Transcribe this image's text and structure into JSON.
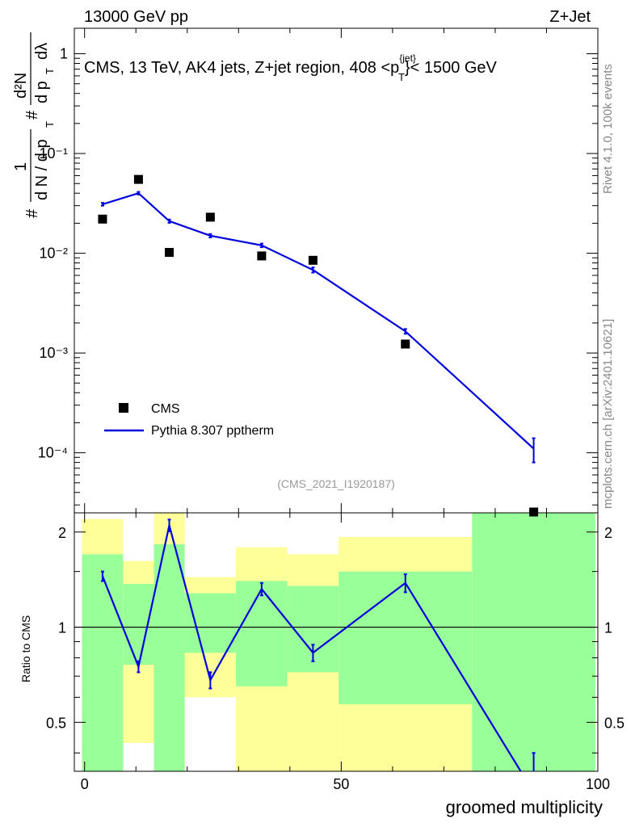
{
  "header": {
    "left": "13000 GeV pp",
    "right": "Z+Jet"
  },
  "side": {
    "rivet": "Rivet 4.1.0,  100k events",
    "source": "mcplots.cern.ch [arXiv:2401.10621]"
  },
  "chart_data": {
    "type": "line",
    "title": "CMS, 13 TeV, AK4 jets, Z+jet region, 408 <p_T^{jet}< 1500 GeV",
    "title_parts": {
      "pre": "CMS, 13 TeV, AK4 jets, Z+jet region, 408 <p",
      "sup": "{jet}",
      "sub": "T",
      "post": "}< 1500 GeV"
    },
    "ylabel_main_parts": {
      "hash1": "#",
      "one": "1",
      "dn": "d N / d p",
      "t1": "T",
      "hash2": "#",
      "d2n": "d²N",
      "dpt": "d p",
      "t2": "T",
      "dl": "dλ"
    },
    "xlabel": "groomed multiplicity",
    "ylabel_ratio": "Ratio to CMS",
    "watermark": "(CMS_2021_I1920187)",
    "xlim": [
      -2,
      100
    ],
    "ylim_main": [
      2.5e-05,
      1.8
    ],
    "ylim_ratio": [
      0.35,
      2.3
    ],
    "x_ticks": [
      0,
      50,
      100
    ],
    "y_ticks_main": [
      {
        "value": 1,
        "label": "1"
      },
      {
        "value": 0.1,
        "label": "10⁻¹"
      },
      {
        "value": 0.01,
        "label": "10⁻²"
      },
      {
        "value": 0.001,
        "label": "10⁻³"
      },
      {
        "value": 0.0001,
        "label": "10⁻⁴"
      }
    ],
    "y_ticks_ratio": [
      {
        "value": 2,
        "label": "2"
      },
      {
        "value": 1,
        "label": "1"
      },
      {
        "value": 0.5,
        "label": "0.5"
      }
    ],
    "legend": [
      {
        "name": "CMS",
        "marker": "square",
        "color": "#000000"
      },
      {
        "name": "Pythia 8.307 pptherm",
        "marker": "line",
        "color": "#0000dd"
      }
    ],
    "series": [
      {
        "name": "CMS",
        "x": [
          3.5,
          10.5,
          16.5,
          24.5,
          34.5,
          44.5,
          62.5,
          87.5
        ],
        "values": [
          0.022,
          0.055,
          0.0102,
          0.023,
          0.0094,
          0.0085,
          0.00123,
          2.3e-05
        ]
      },
      {
        "name": "Pythia 8.307 pptherm",
        "x": [
          3.5,
          10.5,
          16.5,
          24.5,
          34.5,
          44.5,
          62.5,
          87.5
        ],
        "values": [
          0.031,
          0.04,
          0.021,
          0.015,
          0.012,
          0.0068,
          0.00165,
          0.00011
        ],
        "err": [
          0.001,
          0.0012,
          0.0008,
          0.0006,
          0.0005,
          0.0004,
          9e-05,
          3e-05
        ]
      }
    ],
    "ratio": {
      "x": [
        3.5,
        10.5,
        16.5,
        24.5,
        34.5,
        44.5,
        62.5,
        87.5
      ],
      "values": [
        1.45,
        0.75,
        2.1,
        0.68,
        1.32,
        0.83,
        1.38,
        0.3
      ],
      "err": [
        0.05,
        0.03,
        0.09,
        0.04,
        0.06,
        0.05,
        0.09,
        0.1
      ]
    },
    "bands": [
      {
        "xmin": -0.5,
        "xmax": 7.5,
        "yellow": [
          0.35,
          2.2
        ],
        "green": [
          0.35,
          1.7
        ]
      },
      {
        "xmin": 7.5,
        "xmax": 13.5,
        "yellow": [
          0.43,
          1.62
        ],
        "green": [
          0.76,
          1.37
        ]
      },
      {
        "xmin": 13.5,
        "xmax": 19.5,
        "yellow": [
          0.35,
          2.3
        ],
        "green": [
          0.35,
          1.83
        ]
      },
      {
        "xmin": 19.5,
        "xmax": 29.5,
        "yellow": [
          0.6,
          1.44
        ],
        "green": [
          0.83,
          1.28
        ]
      },
      {
        "xmin": 29.5,
        "xmax": 39.5,
        "yellow": [
          0.35,
          1.79
        ],
        "green": [
          0.65,
          1.4
        ]
      },
      {
        "xmin": 39.5,
        "xmax": 49.5,
        "yellow": [
          0.35,
          1.7
        ],
        "green": [
          0.72,
          1.35
        ]
      },
      {
        "xmin": 49.5,
        "xmax": 75.5,
        "yellow": [
          0.35,
          1.93
        ],
        "green": [
          0.57,
          1.5
        ]
      },
      {
        "xmin": 75.5,
        "xmax": 99.5,
        "yellow": [
          0.35,
          2.3
        ],
        "green": [
          0.35,
          2.3
        ]
      }
    ],
    "colors": {
      "yellow": "#ffff99",
      "green": "#99ff99",
      "line": "#0000dd",
      "data": "#000000"
    }
  }
}
